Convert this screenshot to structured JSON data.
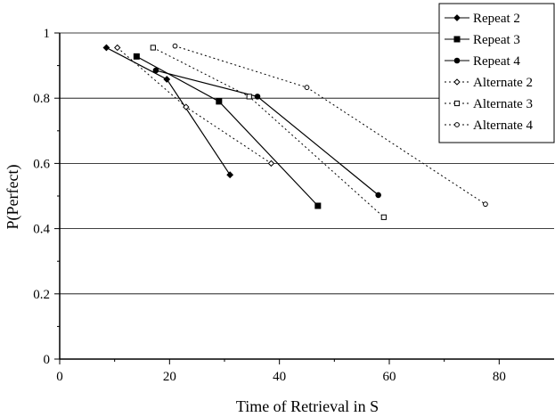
{
  "chart_data": {
    "type": "line",
    "title": "",
    "xlabel": "Time of Retrieval in S",
    "ylabel": "P(Perfect)",
    "xlim": [
      0,
      90
    ],
    "ylim": [
      0,
      1
    ],
    "xticks": [
      0,
      20,
      40,
      60,
      80
    ],
    "yticks": [
      0,
      0.2,
      0.4,
      0.6,
      0.8,
      1
    ],
    "xtick_labels": [
      "0",
      "20",
      "40",
      "60",
      "80"
    ],
    "ytick_labels": [
      "0",
      "0.2",
      "0.4",
      "0.6",
      "0.8",
      "1"
    ],
    "grid": "horizontal",
    "legend_position": "top-right",
    "series": [
      {
        "name": "Repeat 2",
        "marker": "diamond",
        "filled": true,
        "line": "solid",
        "x": [
          8.5,
          19.5,
          31
        ],
        "y": [
          0.955,
          0.858,
          0.565
        ]
      },
      {
        "name": "Repeat 3",
        "marker": "square",
        "filled": true,
        "line": "solid",
        "x": [
          14,
          29,
          47
        ],
        "y": [
          0.928,
          0.79,
          0.47
        ]
      },
      {
        "name": "Repeat 4",
        "marker": "circle",
        "filled": true,
        "line": "solid",
        "x": [
          17.5,
          36,
          58
        ],
        "y": [
          0.885,
          0.805,
          0.503
        ]
      },
      {
        "name": "Alternate 2",
        "marker": "diamond",
        "filled": false,
        "line": "dotted",
        "x": [
          10.5,
          23,
          38.5
        ],
        "y": [
          0.955,
          0.773,
          0.6
        ]
      },
      {
        "name": "Alternate 3",
        "marker": "square",
        "filled": false,
        "line": "dotted",
        "x": [
          17,
          34.5,
          59
        ],
        "y": [
          0.955,
          0.805,
          0.435
        ]
      },
      {
        "name": "Alternate 4",
        "marker": "circle",
        "filled": false,
        "line": "dotted",
        "x": [
          21,
          45,
          77.5
        ],
        "y": [
          0.96,
          0.833,
          0.475
        ]
      }
    ]
  }
}
